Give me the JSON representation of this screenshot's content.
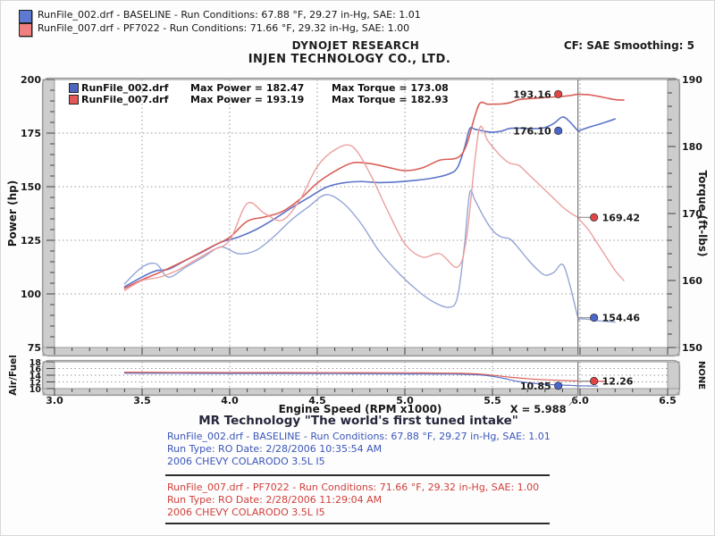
{
  "top_legend": {
    "runs": [
      {
        "swatch_color": "#5e7ad0",
        "text": "RunFile_002.drf - BASELINE  -  Run Conditions: 67.88 °F, 29.27 in-Hg, SAE: 1.01"
      },
      {
        "swatch_color": "#f07f7f",
        "text": "RunFile_007.drf - PF7022  -  Run Conditions: 71.66 °F, 29.32 in-Hg, SAE: 1.00"
      }
    ]
  },
  "header": {
    "brand": "DYNOJET RESEARCH",
    "company": "INJEN TECHNOLOGY CO., LTD.",
    "correction": "CF: SAE  Smoothing: 5"
  },
  "chart_legend": {
    "rows": [
      {
        "swatch_color": "#4d66c0",
        "file": "RunFile_002.drf",
        "max_power_label": "Max Power = 182.47",
        "max_torque_label": "Max Torque = 173.08"
      },
      {
        "swatch_color": "#e45858",
        "file": "RunFile_007.drf",
        "max_power_label": "Max Power = 193.19",
        "max_torque_label": "Max Torque = 182.93"
      }
    ]
  },
  "cursor": {
    "x": 5.988,
    "label": "X = 5.988"
  },
  "chart_data": [
    {
      "type": "line",
      "name": "power-torque-graph",
      "xlabel": "Engine Speed (RPM x1000)",
      "x_range": [
        3.0,
        6.5
      ],
      "x_ticks": [
        3.0,
        3.5,
        4.0,
        4.5,
        5.0,
        5.5,
        6.0,
        6.5
      ],
      "x_minor_step": 0.1,
      "grid_x": [
        3.5,
        4.0,
        4.5,
        5.0,
        5.5,
        6.0
      ],
      "left_axis": {
        "label": "Power (hp)",
        "range": [
          75,
          200
        ],
        "ticks": [
          200,
          175,
          150,
          125,
          100,
          75
        ],
        "minor_step": 5,
        "grid": [
          175,
          150,
          125,
          100
        ]
      },
      "right_axis": {
        "label": "Torque (ft-lbs)",
        "range": [
          150,
          190
        ],
        "ticks": [
          190,
          180,
          170,
          160,
          150
        ],
        "minor_step": 2
      },
      "cursor_x": 5.988,
      "series": [
        {
          "name": "baseline-power",
          "run": "RunFile_002.drf - BASELINE",
          "axis": "left",
          "color": "#5b74c8",
          "width": 1.6,
          "cursor_value": 176.1,
          "cursor_label": "176.10",
          "marker_side": "left",
          "marker_color": "#4a66cc",
          "points": [
            [
              3.4,
              103.3
            ],
            [
              3.5,
              107.9
            ],
            [
              3.58,
              110.8
            ],
            [
              3.65,
              111.5
            ],
            [
              3.75,
              115.7
            ],
            [
              3.85,
              119.8
            ],
            [
              3.95,
              124.1
            ],
            [
              4.05,
              126.5
            ],
            [
              4.15,
              130.0
            ],
            [
              4.25,
              134.7
            ],
            [
              4.35,
              140.0
            ],
            [
              4.45,
              144.9
            ],
            [
              4.55,
              149.7
            ],
            [
              4.65,
              151.8
            ],
            [
              4.75,
              152.4
            ],
            [
              4.85,
              151.9
            ],
            [
              4.95,
              152.2
            ],
            [
              5.05,
              152.9
            ],
            [
              5.15,
              153.9
            ],
            [
              5.25,
              155.9
            ],
            [
              5.3,
              158.9
            ],
            [
              5.34,
              168.0
            ],
            [
              5.37,
              177.0
            ],
            [
              5.4,
              176.8
            ],
            [
              5.45,
              175.9
            ],
            [
              5.5,
              175.4
            ],
            [
              5.55,
              175.9
            ],
            [
              5.6,
              177.2
            ],
            [
              5.65,
              177.3
            ],
            [
              5.7,
              177.1
            ],
            [
              5.75,
              177.1
            ],
            [
              5.8,
              177.6
            ],
            [
              5.85,
              179.5
            ],
            [
              5.9,
              182.5
            ],
            [
              5.94,
              180.4
            ],
            [
              5.988,
              176.1
            ],
            [
              6.0,
              176.3
            ],
            [
              6.05,
              177.7
            ],
            [
              6.1,
              178.9
            ],
            [
              6.15,
              180.2
            ],
            [
              6.2,
              181.6
            ]
          ]
        },
        {
          "name": "pf7022-power",
          "run": "RunFile_007.drf - PF7022",
          "axis": "left",
          "color": "#da5f58",
          "width": 1.6,
          "cursor_value": 193.16,
          "cursor_label": "193.16",
          "marker_side": "left",
          "marker_color": "#e34545",
          "points": [
            [
              3.4,
              102.6
            ],
            [
              3.5,
              106.6
            ],
            [
              3.6,
              110.0
            ],
            [
              3.7,
              113.8
            ],
            [
              3.8,
              117.9
            ],
            [
              3.9,
              122.2
            ],
            [
              4.0,
              126.4
            ],
            [
              4.1,
              133.9
            ],
            [
              4.2,
              135.9
            ],
            [
              4.3,
              138.4
            ],
            [
              4.4,
              144.1
            ],
            [
              4.5,
              151.7
            ],
            [
              4.6,
              157.2
            ],
            [
              4.7,
              161.1
            ],
            [
              4.8,
              160.8
            ],
            [
              4.9,
              159.1
            ],
            [
              5.0,
              157.5
            ],
            [
              5.1,
              158.8
            ],
            [
              5.2,
              162.4
            ],
            [
              5.3,
              163.5
            ],
            [
              5.35,
              169.1
            ],
            [
              5.4,
              183.0
            ],
            [
              5.43,
              189.1
            ],
            [
              5.47,
              188.5
            ],
            [
              5.5,
              188.5
            ],
            [
              5.55,
              188.6
            ],
            [
              5.6,
              189.2
            ],
            [
              5.65,
              190.6
            ],
            [
              5.7,
              191.0
            ],
            [
              5.8,
              191.6
            ],
            [
              5.9,
              192.1
            ],
            [
              5.95,
              192.6
            ],
            [
              5.988,
              193.16
            ],
            [
              6.0,
              193.1
            ],
            [
              6.05,
              192.9
            ],
            [
              6.1,
              192.2
            ],
            [
              6.15,
              191.4
            ],
            [
              6.2,
              190.6
            ],
            [
              6.25,
              190.4
            ]
          ]
        },
        {
          "name": "baseline-torque",
          "run": "RunFile_002.drf - BASELINE",
          "axis": "right",
          "color": "#95a5d6",
          "width": 1.4,
          "cursor_value": 154.46,
          "cursor_label": "154.46",
          "marker_side": "right",
          "marker_color": "#4a66cc",
          "points": [
            [
              3.4,
              159.5
            ],
            [
              3.5,
              162.0
            ],
            [
              3.58,
              162.5
            ],
            [
              3.65,
              160.5
            ],
            [
              3.75,
              162.0
            ],
            [
              3.85,
              163.5
            ],
            [
              3.95,
              165.0
            ],
            [
              4.05,
              164.0
            ],
            [
              4.15,
              164.5
            ],
            [
              4.25,
              166.5
            ],
            [
              4.35,
              169.0
            ],
            [
              4.45,
              171.0
            ],
            [
              4.55,
              172.8
            ],
            [
              4.65,
              171.5
            ],
            [
              4.75,
              168.5
            ],
            [
              4.85,
              164.5
            ],
            [
              4.95,
              161.5
            ],
            [
              5.05,
              159.0
            ],
            [
              5.15,
              157.0
            ],
            [
              5.25,
              156.0
            ],
            [
              5.3,
              157.5
            ],
            [
              5.34,
              165.2
            ],
            [
              5.37,
              173.08
            ],
            [
              5.4,
              172.0
            ],
            [
              5.45,
              169.5
            ],
            [
              5.5,
              167.5
            ],
            [
              5.55,
              166.5
            ],
            [
              5.6,
              166.2
            ],
            [
              5.65,
              164.8
            ],
            [
              5.7,
              163.2
            ],
            [
              5.75,
              161.8
            ],
            [
              5.8,
              160.8
            ],
            [
              5.85,
              161.2
            ],
            [
              5.9,
              162.4
            ],
            [
              5.94,
              159.5
            ],
            [
              5.988,
              154.46
            ],
            [
              6.0,
              154.3
            ],
            [
              6.05,
              154.2
            ],
            [
              6.1,
              154.0
            ],
            [
              6.15,
              153.9
            ],
            [
              6.2,
              153.8
            ]
          ]
        },
        {
          "name": "pf7022-torque",
          "run": "RunFile_007.drf - PF7022",
          "axis": "right",
          "color": "#ec9f9f",
          "width": 1.4,
          "cursor_value": 169.42,
          "cursor_label": "169.42",
          "marker_side": "right",
          "marker_color": "#e34545",
          "points": [
            [
              3.4,
              158.5
            ],
            [
              3.5,
              160.0
            ],
            [
              3.6,
              160.5
            ],
            [
              3.7,
              161.5
            ],
            [
              3.8,
              163.0
            ],
            [
              3.9,
              164.5
            ],
            [
              4.0,
              166.0
            ],
            [
              4.1,
              171.5
            ],
            [
              4.2,
              170.0
            ],
            [
              4.3,
              169.0
            ],
            [
              4.4,
              172.0
            ],
            [
              4.5,
              177.0
            ],
            [
              4.6,
              179.5
            ],
            [
              4.7,
              180.0
            ],
            [
              4.8,
              176.0
            ],
            [
              4.9,
              170.5
            ],
            [
              5.0,
              165.5
            ],
            [
              5.1,
              163.5
            ],
            [
              5.2,
              164.0
            ],
            [
              5.3,
              162.0
            ],
            [
              5.35,
              166.0
            ],
            [
              5.4,
              178.0
            ],
            [
              5.43,
              182.93
            ],
            [
              5.47,
              181.0
            ],
            [
              5.5,
              180.0
            ],
            [
              5.55,
              178.5
            ],
            [
              5.6,
              177.5
            ],
            [
              5.65,
              177.2
            ],
            [
              5.7,
              176.0
            ],
            [
              5.8,
              173.5
            ],
            [
              5.9,
              171.0
            ],
            [
              5.95,
              170.0
            ],
            [
              5.988,
              169.42
            ],
            [
              6.0,
              169.0
            ],
            [
              6.05,
              167.5
            ],
            [
              6.1,
              165.5
            ],
            [
              6.15,
              163.5
            ],
            [
              6.2,
              161.5
            ],
            [
              6.25,
              160.0
            ]
          ]
        }
      ]
    },
    {
      "type": "line",
      "name": "air-fuel-graph",
      "x_range": [
        3.0,
        6.5
      ],
      "x_ticks": [
        3.0,
        3.5,
        4.0,
        4.5,
        5.0,
        5.5,
        6.0,
        6.5
      ],
      "x_minor_step": 0.1,
      "grid_x": [
        3.5,
        4.0,
        4.5,
        5.0,
        5.5,
        6.0
      ],
      "left_axis": {
        "label": "Air/Fuel",
        "range": [
          10,
          18
        ],
        "ticks": [
          18,
          16,
          14,
          12,
          10
        ],
        "minor_step": 2,
        "grid": [
          16,
          14,
          12
        ]
      },
      "right_axis": {
        "label": "NONE",
        "ticks": []
      },
      "cursor_x": 5.988,
      "series": [
        {
          "name": "baseline-airfuel",
          "run": "RunFile_002.drf - BASELINE",
          "axis": "left",
          "color": "#5b74c8",
          "width": 1.2,
          "cursor_value": 10.85,
          "cursor_label": "10.85",
          "marker_side": "left",
          "marker_color": "#4a66cc",
          "points": [
            [
              3.4,
              14.6
            ],
            [
              3.7,
              14.55
            ],
            [
              4.0,
              14.5
            ],
            [
              4.3,
              14.5
            ],
            [
              4.6,
              14.45
            ],
            [
              4.9,
              14.4
            ],
            [
              5.1,
              14.35
            ],
            [
              5.3,
              14.3
            ],
            [
              5.45,
              14.0
            ],
            [
              5.55,
              13.2
            ],
            [
              5.65,
              12.1
            ],
            [
              5.75,
              11.5
            ],
            [
              5.85,
              11.15
            ],
            [
              5.95,
              10.95
            ],
            [
              5.988,
              10.85
            ],
            [
              6.05,
              10.8
            ],
            [
              6.1,
              10.75
            ]
          ]
        },
        {
          "name": "pf7022-airfuel",
          "run": "RunFile_007.drf - PF7022",
          "axis": "left",
          "color": "#da5f58",
          "width": 1.2,
          "cursor_value": 12.26,
          "cursor_label": "12.26",
          "marker_side": "right",
          "marker_color": "#e34545",
          "points": [
            [
              3.4,
              14.9
            ],
            [
              3.7,
              14.85
            ],
            [
              4.0,
              14.8
            ],
            [
              4.3,
              14.8
            ],
            [
              4.6,
              14.78
            ],
            [
              4.9,
              14.75
            ],
            [
              5.1,
              14.7
            ],
            [
              5.3,
              14.6
            ],
            [
              5.45,
              14.25
            ],
            [
              5.6,
              13.4
            ],
            [
              5.7,
              12.95
            ],
            [
              5.8,
              12.65
            ],
            [
              5.9,
              12.45
            ],
            [
              5.988,
              12.26
            ],
            [
              6.05,
              12.2
            ],
            [
              6.1,
              12.2
            ],
            [
              6.15,
              12.2
            ]
          ]
        }
      ]
    }
  ],
  "footer": {
    "title": "MR Technology \"The world's first tuned intake\"",
    "blocks": [
      {
        "color": "#3a55b8",
        "lines": [
          "RunFile_002.drf - BASELINE  -  Run Conditions: 67.88 °F, 29.27 in-Hg, SAE: 1.01",
          "Run Type: RO  Date: 2/28/2006 10:35:54 AM",
          "2006 CHEVY COLARODO 3.5L I5"
        ]
      },
      {
        "color": "#cf3f3a",
        "lines": [
          "RunFile_007.drf - PF7022  -  Run Conditions: 71.66 °F, 29.32 in-Hg, SAE: 1.00",
          "Run Type: RO  Date: 2/28/2006 11:29:04 AM",
          "2006 CHEVY COLARODO 3.5L I5"
        ]
      }
    ]
  }
}
